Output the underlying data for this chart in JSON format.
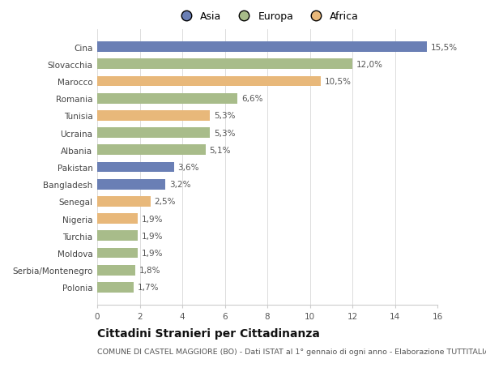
{
  "categories": [
    "Cina",
    "Slovacchia",
    "Marocco",
    "Romania",
    "Tunisia",
    "Ucraina",
    "Albania",
    "Pakistan",
    "Bangladesh",
    "Senegal",
    "Nigeria",
    "Turchia",
    "Moldova",
    "Serbia/Montenegro",
    "Polonia"
  ],
  "values": [
    15.5,
    12.0,
    10.5,
    6.6,
    5.3,
    5.3,
    5.1,
    3.6,
    3.2,
    2.5,
    1.9,
    1.9,
    1.9,
    1.8,
    1.7
  ],
  "labels": [
    "15,5%",
    "12,0%",
    "10,5%",
    "6,6%",
    "5,3%",
    "5,3%",
    "5,1%",
    "3,6%",
    "3,2%",
    "2,5%",
    "1,9%",
    "1,9%",
    "1,9%",
    "1,8%",
    "1,7%"
  ],
  "continents": [
    "Asia",
    "Europa",
    "Africa",
    "Europa",
    "Africa",
    "Europa",
    "Europa",
    "Asia",
    "Asia",
    "Africa",
    "Africa",
    "Europa",
    "Europa",
    "Europa",
    "Europa"
  ],
  "colors": {
    "Asia": "#6a7fb5",
    "Europa": "#a8bc8a",
    "Africa": "#e8b87a"
  },
  "legend_labels": [
    "Asia",
    "Europa",
    "Africa"
  ],
  "legend_colors": [
    "#6a7fb5",
    "#a8bc8a",
    "#e8b87a"
  ],
  "xlim": [
    0,
    16
  ],
  "xticks": [
    0,
    2,
    4,
    6,
    8,
    10,
    12,
    14,
    16
  ],
  "title": "Cittadini Stranieri per Cittadinanza",
  "subtitle": "COMUNE DI CASTEL MAGGIORE (BO) - Dati ISTAT al 1° gennaio di ogni anno - Elaborazione TUTTITALIA.IT",
  "background_color": "#ffffff",
  "bar_height": 0.6,
  "label_fontsize": 7.5,
  "tick_fontsize": 7.5,
  "title_fontsize": 10,
  "subtitle_fontsize": 6.8
}
